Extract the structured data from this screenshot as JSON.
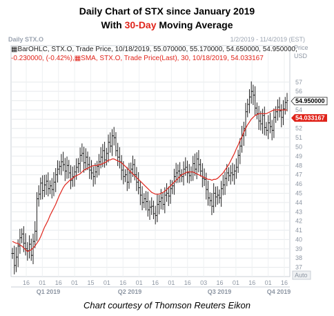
{
  "header": {
    "title_line1": "Daily Chart of STX since January 2019",
    "title_line2_pre": "With ",
    "title_line2_hl": "30-Day",
    "title_line2_post": " Moving Average",
    "panel_tag": "Daily STX.O",
    "date_range": "1/2/2019 - 11/4/2019 (EST)",
    "accent_color": "#e0241b"
  },
  "legend": {
    "line1_icon": "bar-ohlc-icon",
    "line1_text": "BarOHLC, STX.O, Trade Price, 10/18/2019, 55.070000, 55.170000, 54.650000, 54.950000,",
    "line2_change": "-0.230000, (-0.42%),",
    "line2_icon": "sma-icon",
    "line2_text": "SMA, STX.O, Trade Price(Last), 30, 10/18/2019, 54.033167"
  },
  "axis": {
    "price_label": "Price",
    "currency_label": "USD",
    "auto_label": "Auto"
  },
  "price_tags": {
    "last": "54.950000",
    "sma": "54.033167"
  },
  "caption": "Chart courtesy of Thomson Reuters Eikon",
  "chart_data": {
    "type": "line",
    "ylim": [
      36,
      59
    ],
    "y_ticks": [
      37,
      38,
      39,
      40,
      41,
      42,
      43,
      44,
      45,
      46,
      47,
      48,
      49,
      50,
      51,
      52,
      53,
      54,
      55,
      56,
      57
    ],
    "x_tick_labels": [
      "16",
      "01",
      "16",
      "01",
      "15",
      "01",
      "16",
      "01",
      "16",
      "01",
      "16",
      "03",
      "16",
      "01",
      "16",
      "01",
      "16"
    ],
    "quarter_labels": [
      "Q1 2019",
      "Q2 2019",
      "Q3 2019",
      "Q4 2019"
    ],
    "series": [
      {
        "name": "STX.O",
        "style": "ohlc-bars",
        "color": "#1f1f1f",
        "values": [
          38.5,
          37.2,
          38.1,
          39.3,
          40.2,
          40.6,
          39.6,
          39.0,
          38.8,
          39.5,
          38.3,
          39.8,
          40.9,
          44.4,
          44.9,
          46.1,
          45.3,
          45.9,
          46.3,
          45.5,
          45.8,
          45.4,
          46.2,
          47.0,
          47.6,
          47.9,
          48.4,
          48.1,
          47.4,
          48.0,
          47.2,
          46.4,
          46.8,
          47.3,
          47.8,
          48.2,
          49.1,
          49.3,
          48.3,
          48.9,
          48.1,
          47.5,
          47.2,
          46.8,
          47.3,
          47.9,
          48.4,
          48.9,
          49.6,
          48.6,
          49.3,
          50.5,
          50.1,
          51.2,
          51.0,
          49.6,
          48.9,
          48.4,
          47.5,
          46.8,
          47.0,
          46.2,
          47.2,
          47.6,
          48.1,
          47.0,
          46.2,
          45.6,
          44.8,
          44.0,
          44.4,
          44.1,
          43.2,
          43.5,
          43.6,
          42.8,
          42.6,
          43.8,
          44.1,
          44.5,
          43.8,
          44.8,
          45.0,
          44.7,
          45.5,
          45.8,
          46.8,
          47.2,
          47.4,
          47.0,
          46.8,
          47.6,
          47.8,
          47.2,
          46.9,
          47.3,
          48.2,
          47.6,
          48.7,
          48.1,
          47.4,
          46.6,
          46.5,
          45.4,
          44.5,
          44.2,
          43.6,
          45.0,
          44.6,
          44.8,
          44.5,
          45.5,
          45.9,
          46.6,
          47.2,
          46.9,
          47.2,
          47.0,
          47.4,
          47.8,
          49.1,
          50.1,
          51.2,
          52.0,
          53.8,
          54.6,
          55.4,
          56.0,
          55.6,
          54.2,
          53.6,
          52.8,
          52.5,
          53.4,
          52.1,
          51.8,
          52.6,
          52.2,
          51.8,
          53.2,
          53.8,
          54.3,
          53.9,
          53.2,
          54.1,
          54.8,
          55.0
        ]
      },
      {
        "name": "SMA 30",
        "style": "line",
        "color": "#e0241b",
        "values": [
          39.8,
          39.7,
          39.6,
          39.6,
          39.4,
          39.3,
          39.1,
          38.9,
          38.7,
          38.8,
          38.9,
          39.1,
          39.3,
          39.6,
          39.9,
          40.3,
          40.8,
          41.3,
          41.7,
          42.1,
          42.6,
          43.0,
          43.4,
          43.8,
          44.3,
          44.8,
          45.2,
          45.6,
          45.9,
          46.1,
          46.3,
          46.5,
          46.6,
          46.8,
          46.9,
          47.0,
          47.1,
          47.3,
          47.5,
          47.6,
          47.7,
          47.8,
          47.9,
          48.0,
          48.0,
          48.0,
          48.1,
          48.1,
          48.2,
          48.3,
          48.4,
          48.6,
          48.6,
          48.7,
          48.7,
          48.6,
          48.5,
          48.4,
          48.3,
          48.1,
          47.9,
          47.7,
          47.5,
          47.3,
          47.1,
          46.9,
          46.7,
          46.5,
          46.3,
          46.1,
          45.9,
          45.7,
          45.5,
          45.3,
          45.1,
          45.0,
          44.9,
          44.9,
          44.9,
          45.0,
          45.1,
          45.2,
          45.4,
          45.6,
          45.8,
          46.0,
          46.2,
          46.4,
          46.6,
          46.8,
          47.0,
          47.1,
          47.2,
          47.3,
          47.3,
          47.3,
          47.3,
          47.2,
          47.1,
          47.0,
          46.9,
          46.8,
          46.7,
          46.6,
          46.5,
          46.5,
          46.4,
          46.5,
          46.5,
          46.6,
          46.8,
          47.0,
          47.2,
          47.5,
          47.8,
          48.1,
          48.5,
          48.9,
          49.3,
          49.8,
          50.2,
          50.7,
          51.1,
          51.6,
          52.0,
          52.4,
          52.7,
          53.0,
          53.2,
          53.4,
          53.5,
          53.6,
          53.6,
          53.6,
          53.6,
          53.6,
          53.7,
          53.8,
          53.9,
          54.0,
          54.0,
          54.0,
          54.0,
          54.0,
          54.0,
          54.0,
          54.0
        ]
      }
    ]
  }
}
